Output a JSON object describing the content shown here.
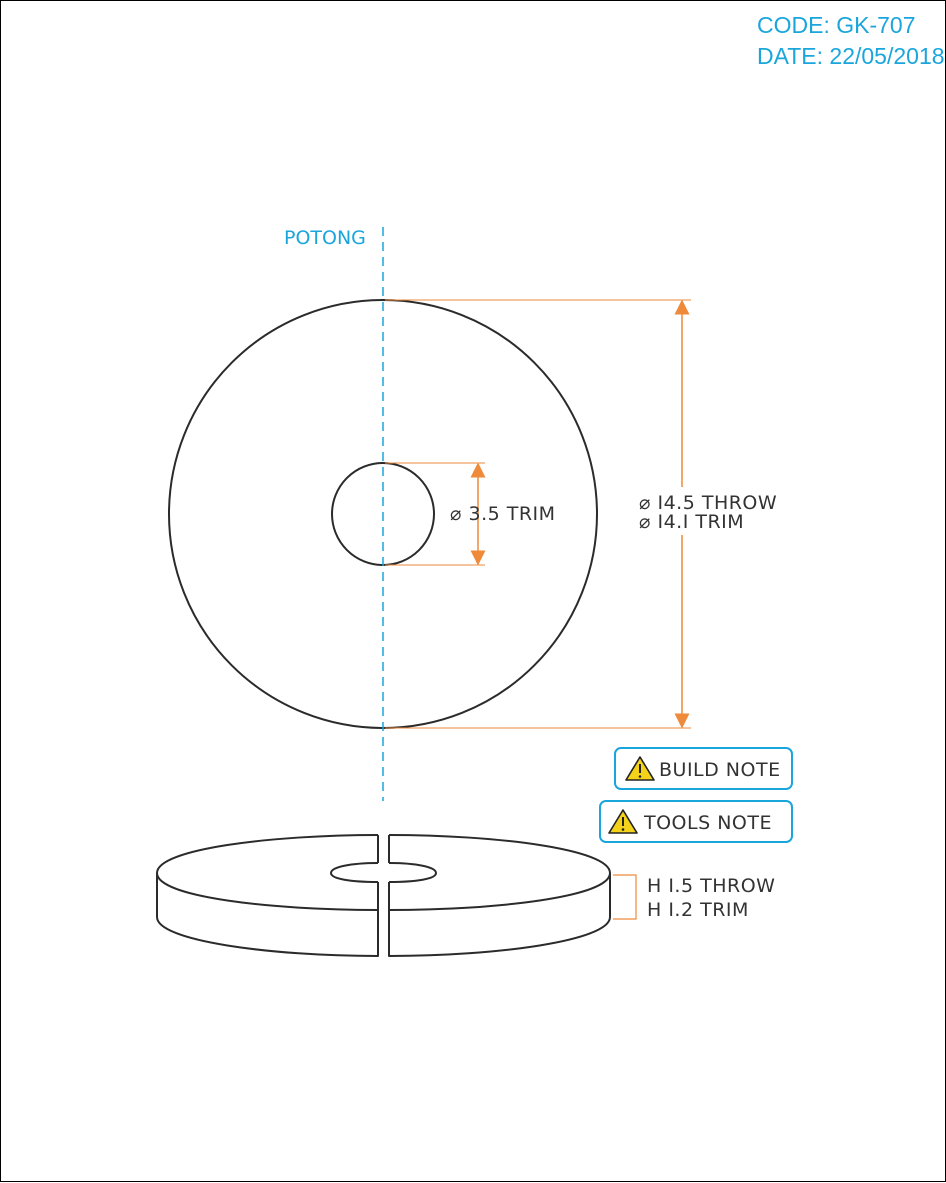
{
  "header": {
    "code": "CODE: GK-707",
    "date": "DATE: 22/05/2018"
  },
  "section_line": {
    "label": "POTONG"
  },
  "dimensions": {
    "inner_diameter": "⌀ 3.5 TRIM",
    "outer_diameter_throw": "⌀ I4.5 THROW",
    "outer_diameter_trim": "⌀ I4.I TRIM",
    "height_throw": "H I.5 THROW",
    "height_trim": "H I.2 TRIM"
  },
  "notes": [
    {
      "label": "BUILD NOTE",
      "icon": "warning-icon"
    },
    {
      "label": "TOOLS NOTE",
      "icon": "warning-icon"
    }
  ],
  "colors": {
    "accent": "#1aa6dc",
    "dimension": "#ee8a3a",
    "outline": "#2b2b2b",
    "warning": "#f5d21a"
  }
}
